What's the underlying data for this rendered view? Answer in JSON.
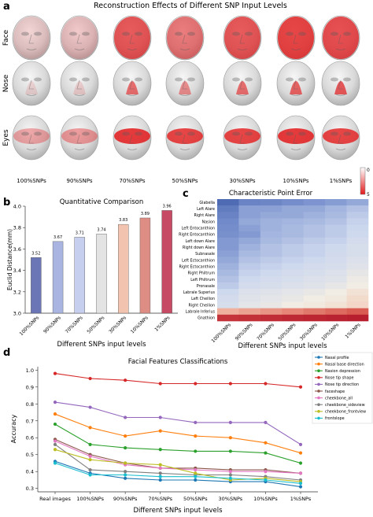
{
  "panels": {
    "a": {
      "letter": "a",
      "title": "Reconstruction Effects of Different SNP Input Levels",
      "rows": [
        "Face",
        "Nose",
        "Eyes"
      ],
      "columns": [
        "100%SNPs",
        "90%SNPs",
        "70%SNPs",
        "50%SNPs",
        "30%SNPs",
        "10%SNPs",
        "1%SNPs"
      ],
      "colorbar": {
        "min": "0",
        "max": "5",
        "low_color": "#ffffff",
        "high_color": "#e31a1c"
      },
      "face_intensity": [
        0.15,
        0.2,
        0.7,
        0.55,
        0.7,
        0.8,
        0.75
      ],
      "nose_intensity": [
        0.12,
        0.15,
        0.6,
        0.45,
        0.6,
        0.65,
        0.7
      ],
      "eyes_intensity": [
        0.35,
        0.4,
        0.85,
        0.8,
        0.8,
        0.85,
        0.8
      ]
    },
    "b": {
      "letter": "b"
    },
    "c": {
      "letter": "c"
    },
    "d": {
      "letter": "d"
    }
  },
  "chart_data": [
    {
      "type": "bar",
      "title": "Quantitative Comparison",
      "xlabel": "Different SNPs input levels",
      "ylabel": "Euclid Distance(mm)",
      "ylim": [
        3.0,
        4.0
      ],
      "yticks": [
        "3.0",
        "3.2",
        "3.4",
        "3.6",
        "3.8",
        "4.0"
      ],
      "categories": [
        "100%SNPs",
        "90%SNPs",
        "70%SNPs",
        "50%SNPs",
        "30%SNPs",
        "10%SNPs",
        "1%SNPs"
      ],
      "values": [
        3.52,
        3.67,
        3.71,
        3.74,
        3.83,
        3.89,
        3.96
      ],
      "labels": [
        "3.52",
        "3.67",
        "3.71",
        "3.74",
        "3.83",
        "3.89",
        "3.96"
      ],
      "colors": [
        "#6b76b6",
        "#a9b5e0",
        "#c6cfee",
        "#e3e3e3",
        "#f2c3ae",
        "#dd8d84",
        "#c64a63"
      ],
      "grid": false
    },
    {
      "type": "heatmap",
      "title": "Characteristic Point Error",
      "xlabel": "Different SNPs input levels",
      "categories": [
        "100%SNPs",
        "90%SNPs",
        "70%SNPs",
        "50%SNPs",
        "30%SNPs",
        "10%SNPs",
        "1%SNPs"
      ],
      "rows": [
        "Glabella",
        "Left Alare",
        "Right Alare",
        "Nasion",
        "Left Entocanthion",
        "Right Entocanthion",
        "Left down Alare",
        "Right down Alare",
        "Subnasale",
        "Left Ectocanthion",
        "Right Ectocanthion",
        "Right Philtrum",
        "Left Philtrum",
        "Pronasale",
        "Labrale Superius",
        "Left Cheilion",
        "Right Cheilion",
        "Labrale Inferius",
        "Gnathion"
      ],
      "values": [
        [
          0.05,
          0.12,
          0.13,
          0.15,
          0.17,
          0.19,
          0.22
        ],
        [
          0.1,
          0.2,
          0.2,
          0.22,
          0.22,
          0.25,
          0.28
        ],
        [
          0.12,
          0.2,
          0.22,
          0.22,
          0.24,
          0.26,
          0.3
        ],
        [
          0.14,
          0.22,
          0.24,
          0.25,
          0.26,
          0.28,
          0.32
        ],
        [
          0.15,
          0.2,
          0.24,
          0.26,
          0.28,
          0.3,
          0.33
        ],
        [
          0.16,
          0.18,
          0.25,
          0.26,
          0.28,
          0.3,
          0.34
        ],
        [
          0.18,
          0.22,
          0.26,
          0.28,
          0.3,
          0.32,
          0.36
        ],
        [
          0.18,
          0.24,
          0.28,
          0.3,
          0.32,
          0.34,
          0.38
        ],
        [
          0.2,
          0.26,
          0.28,
          0.3,
          0.32,
          0.35,
          0.38
        ],
        [
          0.22,
          0.28,
          0.3,
          0.32,
          0.34,
          0.36,
          0.4
        ],
        [
          0.24,
          0.3,
          0.32,
          0.34,
          0.36,
          0.38,
          0.42
        ],
        [
          0.26,
          0.32,
          0.34,
          0.36,
          0.38,
          0.4,
          0.45
        ],
        [
          0.28,
          0.34,
          0.36,
          0.38,
          0.4,
          0.42,
          0.48
        ],
        [
          0.3,
          0.36,
          0.38,
          0.4,
          0.42,
          0.45,
          0.5
        ],
        [
          0.34,
          0.4,
          0.42,
          0.44,
          0.46,
          0.5,
          0.55
        ],
        [
          0.36,
          0.42,
          0.44,
          0.46,
          0.5,
          0.52,
          0.58
        ],
        [
          0.38,
          0.44,
          0.46,
          0.5,
          0.52,
          0.55,
          0.6
        ],
        [
          0.7,
          0.72,
          0.74,
          0.76,
          0.78,
          0.8,
          0.82
        ],
        [
          0.92,
          0.93,
          0.94,
          0.95,
          0.96,
          0.97,
          0.98
        ]
      ]
    },
    {
      "type": "line",
      "title": "Facial Features Classifications",
      "xlabel": "Different SNPs input levels",
      "ylabel": "Accuracy",
      "ylim": [
        0.28,
        1.02
      ],
      "yticks": [
        "0.3",
        "0.4",
        "0.5",
        "0.6",
        "0.7",
        "0.8",
        "0.9",
        "1.0"
      ],
      "x": [
        "Real images",
        "100%SNPs",
        "90%SNPs",
        "70%SNPs",
        "50%SNPs",
        "30%SNPs",
        "10%SNPs",
        "1%SNPs"
      ],
      "legend_position": "top-right",
      "series": [
        {
          "name": "Nasal profile",
          "color": "#1f77b4",
          "values": [
            0.46,
            0.39,
            0.36,
            0.35,
            0.35,
            0.34,
            0.34,
            0.31
          ]
        },
        {
          "name": "Nasal base direction",
          "color": "#ff7f0e",
          "values": [
            0.74,
            0.66,
            0.61,
            0.64,
            0.61,
            0.6,
            0.57,
            0.51
          ]
        },
        {
          "name": "Nasion depression",
          "color": "#2ca02c",
          "values": [
            0.68,
            0.56,
            0.54,
            0.53,
            0.52,
            0.52,
            0.51,
            0.45
          ]
        },
        {
          "name": "Nose tip shape",
          "color": "#d62728",
          "values": [
            0.98,
            0.95,
            0.94,
            0.92,
            0.92,
            0.92,
            0.92,
            0.9
          ]
        },
        {
          "name": "Nose tip direction",
          "color": "#9467bd",
          "values": [
            0.81,
            0.78,
            0.72,
            0.72,
            0.69,
            0.69,
            0.69,
            0.56
          ]
        },
        {
          "name": "faceshape",
          "color": "#8c564b",
          "values": [
            0.59,
            0.5,
            0.45,
            0.42,
            0.42,
            0.41,
            0.41,
            0.39
          ]
        },
        {
          "name": "cheekbone_all",
          "color": "#e377c2",
          "values": [
            0.58,
            0.49,
            0.44,
            0.42,
            0.41,
            0.4,
            0.4,
            0.39
          ]
        },
        {
          "name": "cheekbone_sideview",
          "color": "#7f7f7f",
          "values": [
            0.56,
            0.41,
            0.4,
            0.39,
            0.38,
            0.38,
            0.37,
            0.35
          ]
        },
        {
          "name": "cheekbone_frontview",
          "color": "#bcbd22",
          "values": [
            0.53,
            0.47,
            0.45,
            0.44,
            0.39,
            0.35,
            0.36,
            0.34
          ]
        },
        {
          "name": "frontslope",
          "color": "#17becf",
          "values": [
            0.45,
            0.38,
            0.38,
            0.37,
            0.37,
            0.36,
            0.35,
            0.33
          ]
        }
      ]
    }
  ]
}
